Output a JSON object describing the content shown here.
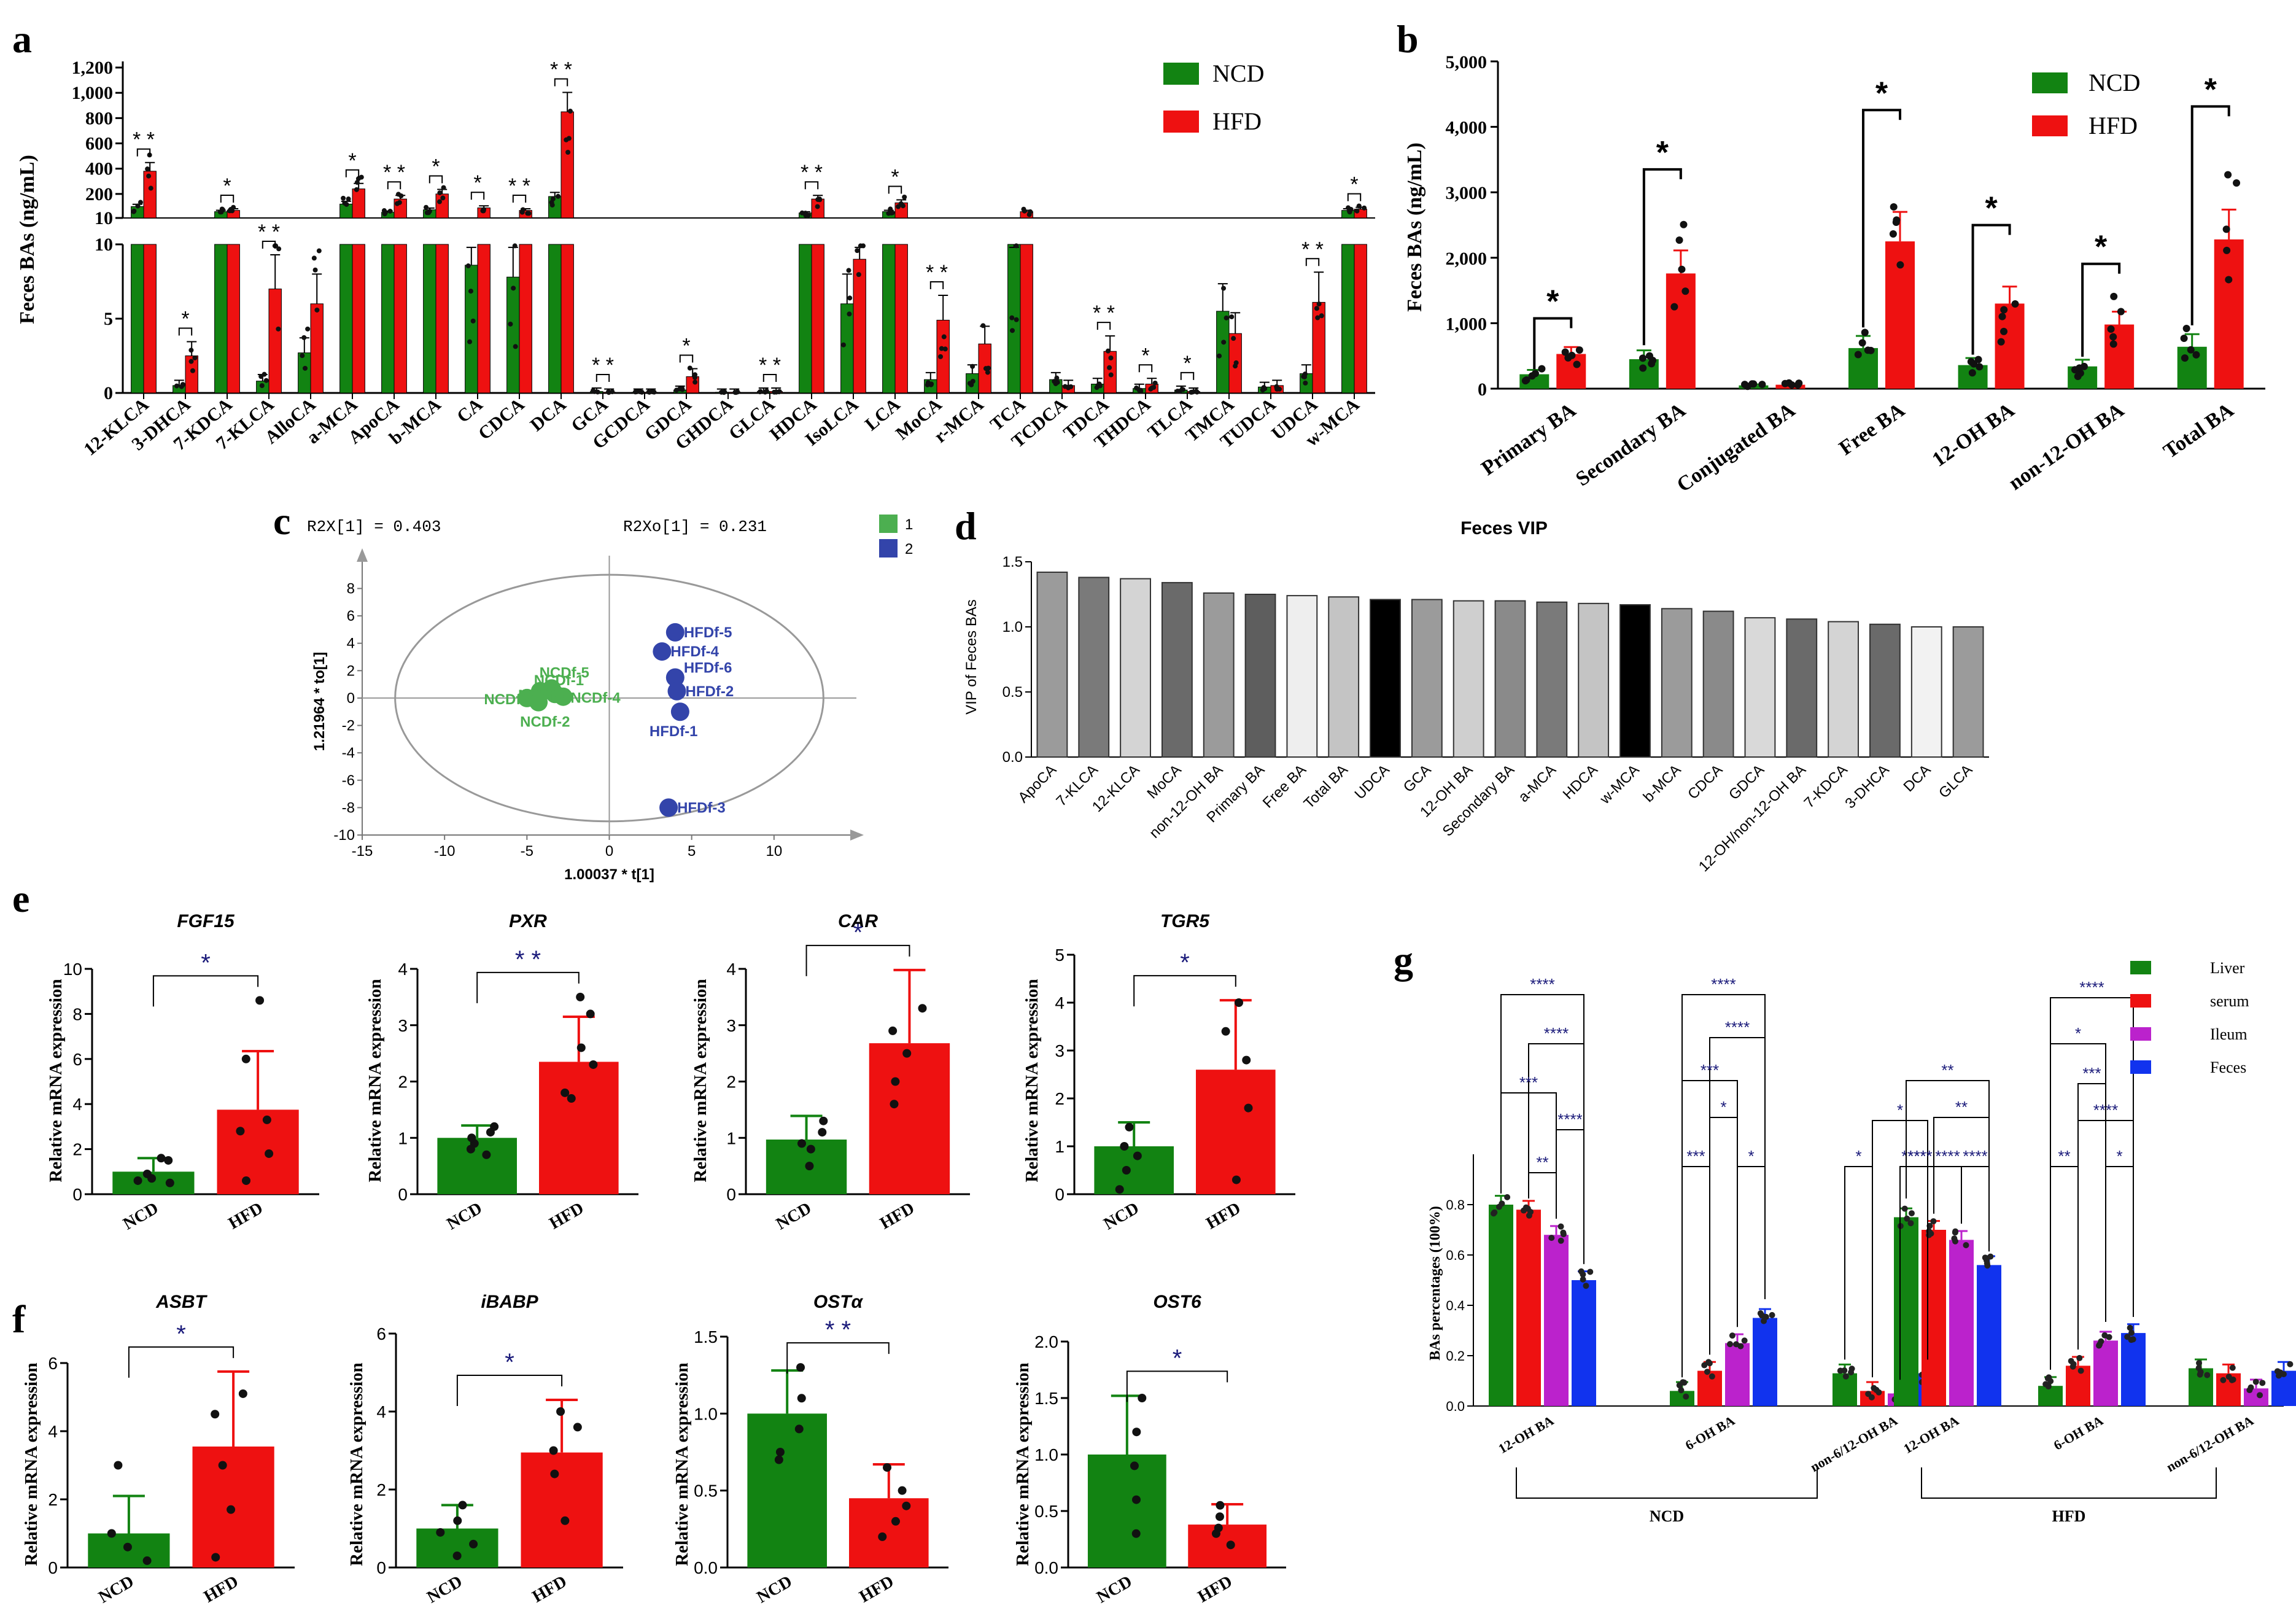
{
  "colors": {
    "ncd": "#128312",
    "hfd": "#ee1111",
    "liver": "#128312",
    "serum": "#ee1111",
    "ileum": "#bb22cc",
    "feces": "#1133ee",
    "g1": "#4caf50",
    "g2": "#3344aa"
  },
  "panels": {
    "a": "a",
    "b": "b",
    "c": "c",
    "d": "d",
    "e": "e",
    "f": "f",
    "g": "g"
  },
  "chart_data": [
    {
      "id": "a",
      "type": "bar",
      "ylabel": "Feces BAs (ng/mL)",
      "legend": [
        "NCD",
        "HFD"
      ],
      "ytick_top": [
        "1,200",
        "1,000",
        "800",
        "600",
        "400",
        "200",
        "10"
      ],
      "ytick_bottom": [
        "10",
        "5",
        "0"
      ],
      "categories": [
        "12-KLCA",
        "3-DHCA",
        "7-KDCA",
        "7-KLCA",
        "AlloCA",
        "a-MCA",
        "ApoCA",
        "b-MCA",
        "CA",
        "CDCA",
        "DCA",
        "GCA",
        "GCDCA",
        "GDCA",
        "GHDCA",
        "GLCA",
        "HDCA",
        "IsoLCA",
        "LCA",
        "MoCA",
        "r-MCA",
        "TCA",
        "TCDCA",
        "TDCA",
        "THDCA",
        "TLCA",
        "TMCA",
        "TUDCA",
        "UDCA",
        "w-MCA"
      ],
      "series": [
        {
          "name": "NCD",
          "values": [
            100,
            0.5,
            60,
            0.8,
            2.7,
            120,
            55,
            75,
            8.6,
            7.8,
            180,
            0.1,
            0.05,
            0.2,
            0.05,
            0.1,
            50,
            6,
            60,
            0.9,
            1.3,
            10,
            0.9,
            0.6,
            0.3,
            0.2,
            5.5,
            0.4,
            1.3,
            70
          ]
        },
        {
          "name": "HFD",
          "values": [
            380,
            2.5,
            70,
            7,
            6,
            240,
            160,
            200,
            90,
            70,
            850,
            0.05,
            0.05,
            1.1,
            0.05,
            0.1,
            160,
            9,
            130,
            4.9,
            3.3,
            60,
            0.5,
            2.8,
            0.6,
            0.1,
            4,
            0.5,
            6.1,
            80
          ]
        }
      ],
      "significance": [
        "* *",
        "*",
        "*",
        "* *",
        "",
        "*",
        "* *",
        "*",
        "*",
        "* *",
        "* *",
        "* *",
        "",
        "*",
        "",
        "* *",
        "* *",
        "",
        "*",
        "* *",
        "",
        "",
        "",
        "* *",
        "*",
        "*",
        "",
        "",
        "* *",
        "*"
      ]
    },
    {
      "id": "b",
      "type": "bar",
      "ylabel": "Feces BAs (ng/mL)",
      "ylim": [
        0,
        5000
      ],
      "yticks": [
        "0",
        "1,000",
        "2,000",
        "3,000",
        "4,000",
        "5,000"
      ],
      "legend": [
        "NCD",
        "HFD"
      ],
      "categories": [
        "Primary BA",
        "Secondary BA",
        "Conjugated BA",
        "Free BA",
        "12-OH BA",
        "non-12-OH BA",
        "Total BA"
      ],
      "series": [
        {
          "name": "NCD",
          "values": [
            220,
            450,
            50,
            620,
            360,
            340,
            640
          ]
        },
        {
          "name": "HFD",
          "values": [
            530,
            1760,
            60,
            2250,
            1300,
            980,
            2280
          ]
        }
      ],
      "significance": [
        "*",
        "*",
        "",
        "*",
        "*",
        "*",
        "*"
      ]
    },
    {
      "id": "c",
      "type": "scatter",
      "top_left": "R2X[1] = 0.403",
      "top_right": "R2Xo[1] = 0.231",
      "xlabel": "1.00037 * t[1]",
      "ylabel": "1.21964 * to[1]",
      "xticks": [
        "-15",
        "-10",
        "-5",
        "0",
        "5",
        "10"
      ],
      "yticks": [
        "-10",
        "-8",
        "-6",
        "-4",
        "-2",
        "0",
        "2",
        "4",
        "6",
        "8"
      ],
      "legend": [
        "1",
        "2"
      ],
      "points": [
        {
          "label": "NCDf-5",
          "x": -3.5,
          "y": 0.7,
          "group": 1
        },
        {
          "label": "NCDf-1",
          "x": -4.2,
          "y": 0.5,
          "group": 1
        },
        {
          "label": "NCDf-6",
          "x": -5.0,
          "y": 0,
          "group": 1
        },
        {
          "label": "NCDf-4",
          "x": -2.8,
          "y": 0.1,
          "group": 1
        },
        {
          "label": "NCDf-3",
          "x": -3.3,
          "y": 0.3,
          "group": 1
        },
        {
          "label": "NCDf-2",
          "x": -4.3,
          "y": -0.3,
          "group": 1
        },
        {
          "label": "HFDf-5",
          "x": 4.0,
          "y": 4.8,
          "group": 2
        },
        {
          "label": "HFDf-4",
          "x": 3.2,
          "y": 3.4,
          "group": 2
        },
        {
          "label": "HFDf-6",
          "x": 4.0,
          "y": 1.5,
          "group": 2
        },
        {
          "label": "HFDf-2",
          "x": 4.1,
          "y": 0.5,
          "group": 2
        },
        {
          "label": "HFDf-1",
          "x": 4.3,
          "y": -1.0,
          "group": 2
        },
        {
          "label": "HFDf-3",
          "x": 3.6,
          "y": -8.0,
          "group": 2
        }
      ]
    },
    {
      "id": "d",
      "type": "bar",
      "title": "Feces VIP",
      "ylabel": "VIP of Feces BAs",
      "ylim": [
        0,
        1.5
      ],
      "yticks": [
        "0.0",
        "0.5",
        "1.0",
        "1.5"
      ],
      "categories": [
        "ApoCA",
        "7-KLCA",
        "12-KLCA",
        "MoCA",
        "non-12-OH BA",
        "Primary BA",
        "Free BA",
        "Total BA",
        "UDCA",
        "GCA",
        "12-OH BA",
        "Secondary BA",
        "a-MCA",
        "HDCA",
        "w-MCA",
        "b-MCA",
        "CDCA",
        "GDCA",
        "12-OH/non-12-OH BA",
        "7-KDCA",
        "3-DHCA",
        "DCA",
        "GLCA"
      ],
      "values": [
        1.42,
        1.38,
        1.37,
        1.34,
        1.26,
        1.25,
        1.24,
        1.23,
        1.21,
        1.21,
        1.2,
        1.2,
        1.19,
        1.18,
        1.17,
        1.14,
        1.12,
        1.07,
        1.06,
        1.04,
        1.02,
        1.0,
        1.0
      ],
      "shades": [
        "#9b9b9b",
        "#7a7a7a",
        "#d4d4d4",
        "#6a6a6a",
        "#9b9b9b",
        "#5e5e5e",
        "#eeeeee",
        "#c4c4c4",
        "#000000",
        "#9b9b9b",
        "#cfcfcf",
        "#8a8a8a",
        "#7a7a7a",
        "#c4c4c4",
        "#000000",
        "#9b9b9b",
        "#8a8a8a",
        "#d9d9d9",
        "#6a6a6a",
        "#d4d4d4",
        "#6a6a6a",
        "#f2f2f2",
        "#9b9b9b"
      ]
    },
    {
      "id": "e1",
      "type": "bar",
      "title": "FGF15",
      "ylabel": "Relative mRNA expression",
      "ylim": [
        0,
        10
      ],
      "yticks": [
        "0",
        "2",
        "4",
        "6",
        "8",
        "10"
      ],
      "categories": [
        "NCD",
        "HFD"
      ],
      "values": [
        1.0,
        3.75
      ],
      "errors": [
        0.6,
        2.6
      ],
      "significance": "*",
      "points": [
        [
          1.5,
          1.6,
          0.5,
          0.9,
          0.6,
          0.7
        ],
        [
          8.6,
          6.0,
          3.3,
          2.8,
          1.8,
          0.6
        ]
      ]
    },
    {
      "id": "e2",
      "type": "bar",
      "title": "PXR",
      "ylabel": "Relative mRNA expression",
      "ylim": [
        0,
        4
      ],
      "yticks": [
        "0",
        "1",
        "2",
        "3",
        "4"
      ],
      "categories": [
        "NCD",
        "HFD"
      ],
      "values": [
        1.0,
        2.35
      ],
      "errors": [
        0.22,
        0.8
      ],
      "significance": "* *",
      "points": [
        [
          1.2,
          1.1,
          0.9,
          0.8,
          1.0,
          0.7
        ],
        [
          3.5,
          3.2,
          2.6,
          2.3,
          1.7,
          1.8
        ]
      ]
    },
    {
      "id": "e3",
      "type": "bar",
      "title": "CAR",
      "ylabel": "Relative mRNA expression",
      "ylim": [
        0,
        4
      ],
      "yticks": [
        "0",
        "1",
        "2",
        "3",
        "4"
      ],
      "categories": [
        "NCD",
        "HFD"
      ],
      "values": [
        0.97,
        2.68
      ],
      "errors": [
        0.42,
        1.3
      ],
      "significance": "*",
      "points": [
        [
          1.3,
          1.1,
          0.9,
          0.5,
          0.8
        ],
        [
          3.3,
          2.9,
          2.5,
          2.0,
          1.6
        ]
      ]
    },
    {
      "id": "e4",
      "type": "bar",
      "title": "TGR5",
      "ylabel": "Relative mRNA expression",
      "ylim": [
        0,
        5
      ],
      "yticks": [
        "0",
        "1",
        "2",
        "3",
        "4",
        "5"
      ],
      "categories": [
        "NCD",
        "HFD"
      ],
      "values": [
        1.0,
        2.6
      ],
      "errors": [
        0.5,
        1.45
      ],
      "significance": "*",
      "points": [
        [
          1.4,
          1.0,
          0.8,
          0.5,
          0.1
        ],
        [
          4.0,
          3.4,
          2.8,
          1.8,
          0.3
        ]
      ]
    },
    {
      "id": "f1",
      "type": "bar",
      "title": "ASBT",
      "ylabel": "Relative mRNA expression",
      "ylim": [
        0,
        6
      ],
      "yticks": [
        "0",
        "2",
        "4",
        "6"
      ],
      "categories": [
        "NCD",
        "HFD"
      ],
      "values": [
        1.0,
        3.55
      ],
      "errors": [
        1.1,
        2.2
      ],
      "significance": "*",
      "points": [
        [
          3.0,
          1.0,
          0.6,
          0.2
        ],
        [
          5.1,
          4.5,
          3.0,
          1.7,
          0.3
        ]
      ]
    },
    {
      "id": "f2",
      "type": "bar",
      "title": "iBABP",
      "ylabel": "Relative mRNA expression",
      "ylim": [
        0,
        6
      ],
      "yticks": [
        "0",
        "2",
        "4",
        "6"
      ],
      "categories": [
        "NCD",
        "HFD"
      ],
      "values": [
        1.0,
        2.95
      ],
      "errors": [
        0.6,
        1.35
      ],
      "significance": "*",
      "points": [
        [
          1.6,
          1.2,
          0.9,
          0.6,
          0.3
        ],
        [
          4.0,
          3.6,
          3.0,
          2.4,
          1.2
        ]
      ]
    },
    {
      "id": "f3",
      "type": "bar",
      "title": "OSTα",
      "ylabel": "Relative mRNA expression",
      "ylim": [
        0,
        1.5
      ],
      "yticks": [
        "0.0",
        "0.5",
        "1.0",
        "1.5"
      ],
      "categories": [
        "NCD",
        "HFD"
      ],
      "values": [
        1.0,
        0.45
      ],
      "errors": [
        0.28,
        0.22
      ],
      "significance": "* *",
      "points": [
        [
          1.3,
          1.1,
          0.9,
          0.75,
          0.7
        ],
        [
          0.65,
          0.5,
          0.4,
          0.3,
          0.2
        ]
      ]
    },
    {
      "id": "f4",
      "type": "bar",
      "title": "OST6",
      "ylabel": "Relative mRNA expression",
      "ylim": [
        0,
        2.0
      ],
      "yticks": [
        "0.0",
        "0.5",
        "1.0",
        "1.5",
        "2.0"
      ],
      "categories": [
        "NCD",
        "HFD"
      ],
      "values": [
        1.0,
        0.38
      ],
      "errors": [
        0.52,
        0.18
      ],
      "significance": "*",
      "points": [
        [
          1.5,
          1.2,
          0.9,
          0.6,
          0.3
        ],
        [
          0.55,
          0.45,
          0.35,
          0.3,
          0.2
        ]
      ]
    },
    {
      "id": "g",
      "type": "bar",
      "ylabel": "BAs percentages (100%)",
      "ylim": [
        0,
        1.0
      ],
      "yticks": [
        "0.0",
        "0.2",
        "0.4",
        "0.6",
        "0.8"
      ],
      "legend": [
        "Liver",
        "serum",
        "Ileum",
        "Feces"
      ],
      "categories": [
        "12-OH BA",
        "6-OH BA",
        "non-6/12-OH BA",
        "12-OH BA",
        "6-OH BA",
        "non-6/12-OH BA"
      ],
      "groups": [
        "NCD",
        "HFD"
      ],
      "series": [
        {
          "name": "Liver",
          "values": [
            0.8,
            0.06,
            0.13,
            0.75,
            0.08,
            0.15
          ]
        },
        {
          "name": "serum",
          "values": [
            0.78,
            0.14,
            0.06,
            0.7,
            0.16,
            0.13
          ]
        },
        {
          "name": "Ileum",
          "values": [
            0.68,
            0.25,
            0.05,
            0.66,
            0.26,
            0.07
          ]
        },
        {
          "name": "Feces",
          "values": [
            0.5,
            0.35,
            0.13,
            0.56,
            0.29,
            0.14
          ]
        }
      ],
      "significance": [
        "****",
        "****",
        "***",
        "****",
        "**",
        "****",
        "****",
        "***",
        "*",
        "***",
        "*",
        "*",
        "*",
        "****",
        "**",
        "**",
        "****",
        "****",
        "****",
        "****",
        "*",
        "***",
        "****",
        "**",
        "*"
      ]
    }
  ]
}
